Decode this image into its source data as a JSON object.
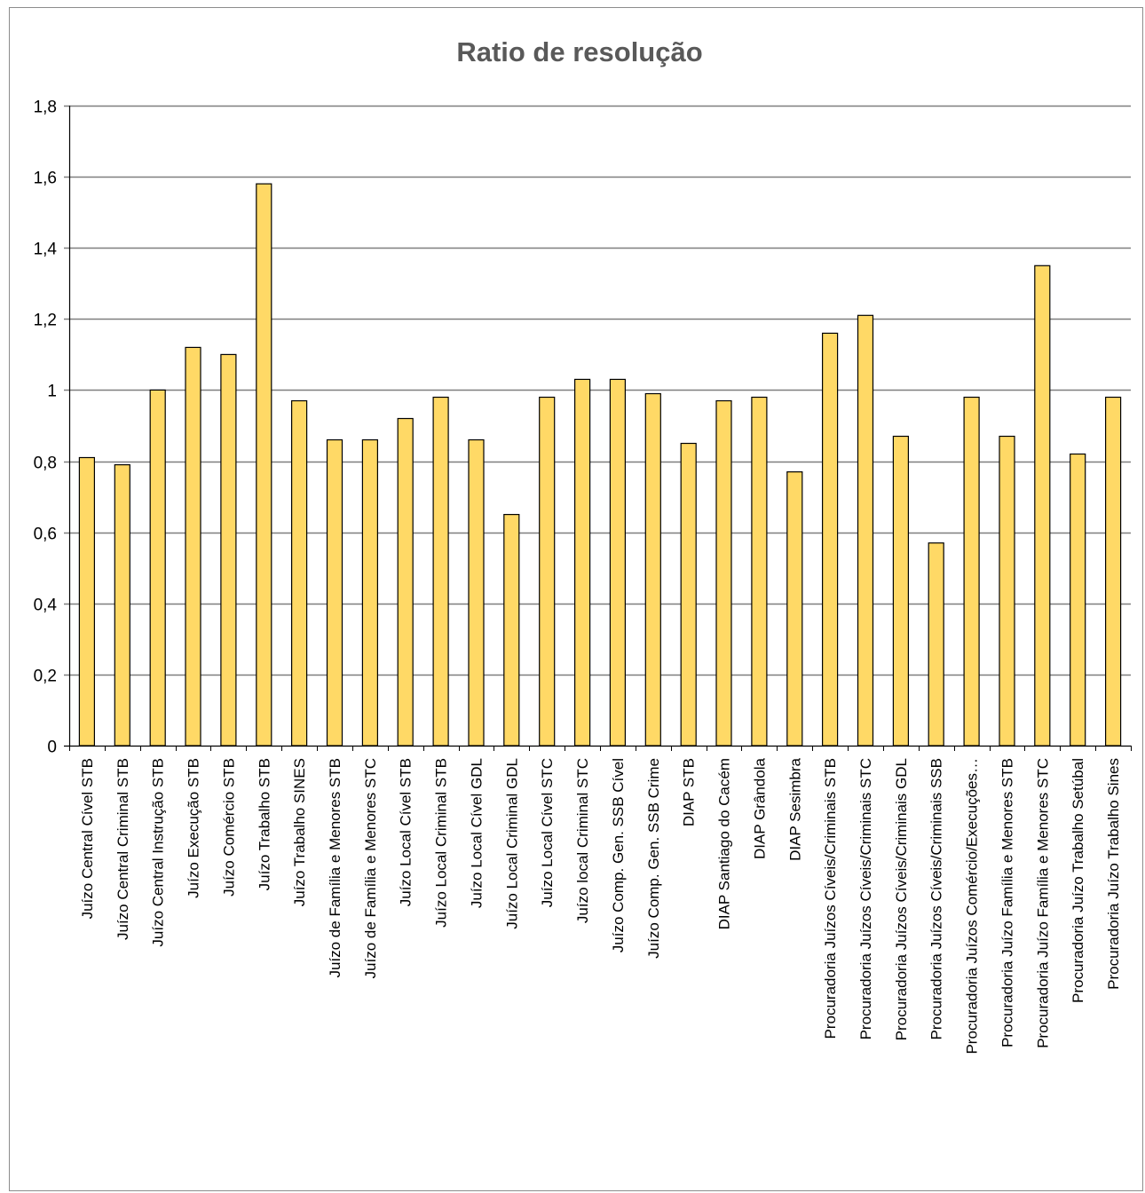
{
  "chart_data": {
    "type": "bar",
    "title": "Ratio de resolução",
    "xlabel": "",
    "ylabel": "",
    "ylim": [
      0,
      1.8
    ],
    "yticks": [
      0,
      0.2,
      0.4,
      0.6,
      0.8,
      1,
      1.2,
      1.4,
      1.6,
      1.8
    ],
    "ytick_labels": [
      "0",
      "0,2",
      "0,4",
      "0,6",
      "0,8",
      "1",
      "1,2",
      "1,4",
      "1,6",
      "1,8"
    ],
    "grid": true,
    "legend": "none",
    "categories": [
      "Juízo Central Cível STB",
      "Juízo Central Criminal STB",
      "Juízo Central Instrução STB",
      "Juízo Execução STB",
      "Juízo Comércio STB",
      "Juízo Trabalho STB",
      "Juízo Trabalho SINES",
      "Juízo de Família e Menores STB",
      "Juízo de Família e Menores STC",
      "Juízo Local Cível STB",
      "Juízo Local Criminal STB",
      "Juízo Local Cível GDL",
      "Juízo Local Criminal GDL",
      "Juízo Local Cível STC",
      "Juízo local Criminal STC",
      "Juízo Comp. Gen. SSB Cível",
      "Juízo Comp. Gen. SSB Crime",
      "DIAP STB",
      "DIAP Santiago do Cacém",
      "DIAP Grândola",
      "DIAP Sesimbra",
      "Procuradoria Juízos Cíveis/Criminais STB",
      "Procuradoria Juízos Cíveis/Criminais STC",
      "Procuradoria Juízos Cíveis/Criminais GDL",
      "Procuradoria Juízos Cíveis/Criminais SSB",
      "Procuradoria Juízos Comércio/Execuções…",
      "Procuradoria Juízo Família e Menores STB",
      "Procuradoria Juízo Família e Menores STC",
      "Procuradoria Juízo Trabalho Setúbal",
      "Procuradoria Juízo Trabalho Sines"
    ],
    "values": [
      0.81,
      0.79,
      1.0,
      1.12,
      1.1,
      1.58,
      0.97,
      0.86,
      0.86,
      0.92,
      0.98,
      0.86,
      0.65,
      0.98,
      1.03,
      1.03,
      0.99,
      0.85,
      0.97,
      0.98,
      0.77,
      1.16,
      1.21,
      0.87,
      0.57,
      0.98,
      0.87,
      1.35,
      0.82,
      0.98
    ],
    "colors": {
      "bar_fill": "#FFD966",
      "bar_stroke": "#000000",
      "grid": "#7f7f7f",
      "axis": "#000000",
      "title": "#595959"
    }
  }
}
